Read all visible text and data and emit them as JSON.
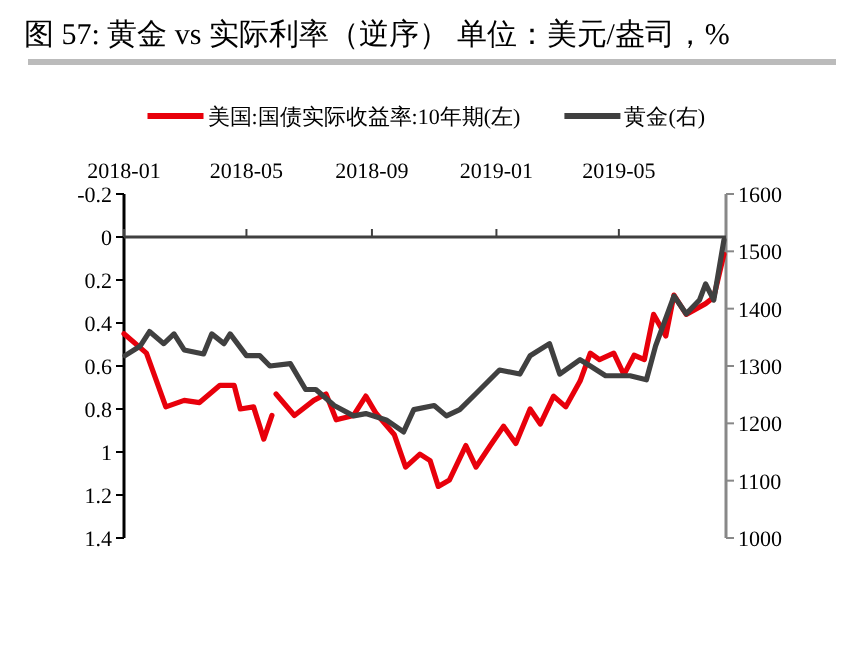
{
  "chart_data": {
    "type": "line",
    "title": "图 57:    黄金 vs 实际利率（逆序） 单位：美元/盎司，%",
    "xlim": [
      "2018-01-01",
      "2019-08-14"
    ],
    "xticks": [
      {
        "value": "2018-01-01",
        "label": "2018-01"
      },
      {
        "value": "2018-05-01",
        "label": "2018-05"
      },
      {
        "value": "2018-09-01",
        "label": "2018-09"
      },
      {
        "value": "2019-01-01",
        "label": "2019-01"
      },
      {
        "value": "2019-05-01",
        "label": "2019-05"
      }
    ],
    "ylim": [
      1.4,
      -0.2
    ],
    "yticks": [
      -0.2,
      0,
      0.2,
      0.4,
      0.6,
      0.8,
      1,
      1.2,
      1.4
    ],
    "y2lim": [
      1000,
      1600
    ],
    "y2ticks": [
      1000,
      1100,
      1200,
      1300,
      1400,
      1500,
      1600
    ],
    "legend": "top",
    "grid": false,
    "series": [
      {
        "name": "美国:国债实际收益率:10年期(左)",
        "color": "#e8000b",
        "x": [
          "2018-01-01",
          "2018-01-23",
          "2018-02-11",
          "2018-03-01",
          "2018-03-16",
          "2018-04-05",
          "2018-04-19",
          "2018-04-25",
          "2018-05-08",
          "2018-05-18",
          "2018-05-26",
          "2018-05-28",
          "2018-05-30",
          "2018-06-17",
          "2018-07-06",
          "2018-07-18",
          "2018-07-28",
          "2018-08-14",
          "2018-08-26",
          "2018-09-05",
          "2018-09-23",
          "2018-10-04",
          "2018-10-18",
          "2018-10-28",
          "2018-11-05",
          "2018-11-16",
          "2018-12-02",
          "2018-12-12",
          "2018-12-26",
          "2019-01-08",
          "2019-01-20",
          "2019-02-03",
          "2019-02-13",
          "2019-02-26",
          "2019-03-10",
          "2019-03-24",
          "2019-04-03",
          "2019-04-12",
          "2019-04-26",
          "2019-05-06",
          "2019-05-16",
          "2019-05-26",
          "2019-06-04",
          "2019-06-16",
          "2019-06-24",
          "2019-07-06",
          "2019-07-25",
          "2019-08-02",
          "2019-08-12"
        ],
        "values": [
          0.45,
          0.54,
          0.79,
          0.76,
          0.77,
          0.69,
          0.69,
          0.8,
          0.79,
          0.94,
          0.83,
          null,
          0.73,
          0.83,
          0.76,
          0.73,
          0.85,
          0.83,
          0.74,
          0.82,
          0.92,
          1.07,
          1.01,
          1.04,
          1.16,
          1.13,
          0.97,
          1.07,
          0.97,
          0.88,
          0.96,
          0.8,
          0.87,
          0.74,
          0.79,
          0.67,
          0.54,
          0.57,
          0.54,
          0.64,
          0.55,
          0.57,
          0.36,
          0.46,
          0.27,
          0.36,
          0.31,
          0.28,
          0.08
        ]
      },
      {
        "name": "黄金(右)",
        "color": "#404040",
        "axis": "y2",
        "x": [
          "2018-01-02",
          "2018-01-17",
          "2018-01-26",
          "2018-02-09",
          "2018-02-19",
          "2018-03-01",
          "2018-03-20",
          "2018-03-28",
          "2018-04-09",
          "2018-04-15",
          "2018-05-01",
          "2018-05-14",
          "2018-05-24",
          "2018-06-13",
          "2018-06-28",
          "2018-07-08",
          "2018-07-26",
          "2018-08-14",
          "2018-08-26",
          "2018-09-15",
          "2018-10-02",
          "2018-10-12",
          "2018-11-01",
          "2018-11-13",
          "2018-11-26",
          "2018-12-12",
          "2019-01-04",
          "2019-01-24",
          "2019-02-03",
          "2019-02-22",
          "2019-03-04",
          "2019-03-24",
          "2019-04-03",
          "2019-04-18",
          "2019-05-12",
          "2019-05-28",
          "2019-06-06",
          "2019-06-24",
          "2019-07-06",
          "2019-07-19",
          "2019-07-25",
          "2019-08-02",
          "2019-08-12"
        ],
        "values": [
          1318,
          1335,
          1360,
          1339,
          1356,
          1328,
          1321,
          1356,
          1339,
          1356,
          1318,
          1318,
          1300,
          1304,
          1259,
          1259,
          1231,
          1213,
          1217,
          1206,
          1185,
          1224,
          1231,
          1213,
          1224,
          1252,
          1293,
          1286,
          1318,
          1339,
          1286,
          1311,
          1300,
          1283,
          1283,
          1276,
          1335,
          1422,
          1391,
          1415,
          1443,
          1415,
          1520
        ]
      }
    ]
  }
}
